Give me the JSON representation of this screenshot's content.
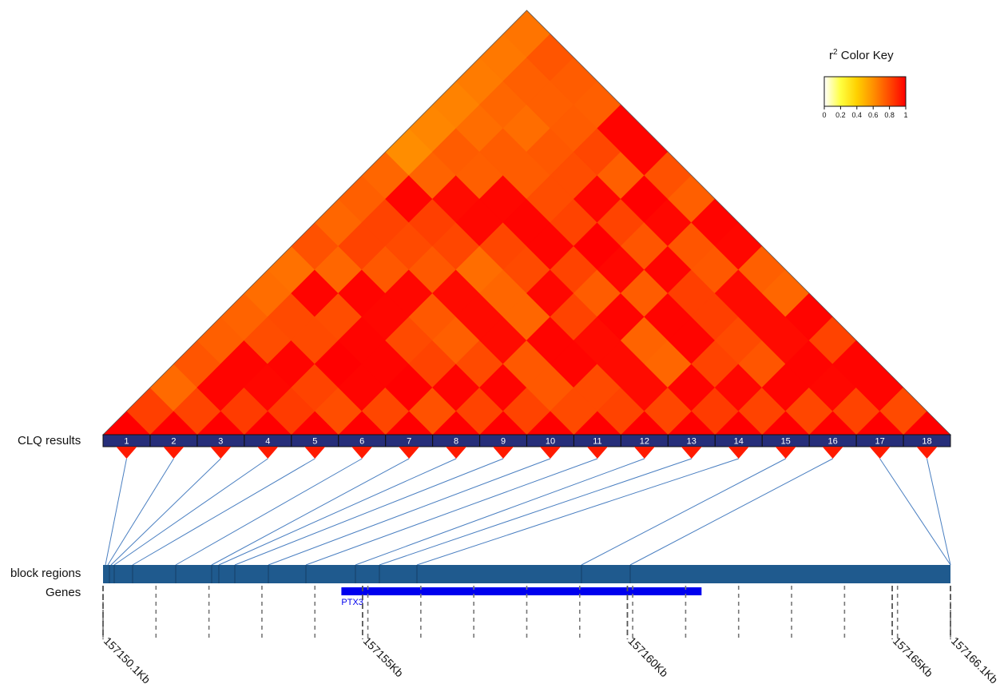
{
  "labels": {
    "clq_results": "CLQ results",
    "block_regions": "block regions",
    "genes": "Genes"
  },
  "color_key": {
    "title_main": "r",
    "title_sup": "2",
    "title_rest": " Color Key",
    "ticks": [
      "0",
      "0.2",
      "0.4",
      "0.6",
      "0.8",
      "1"
    ],
    "gradient": [
      "#ffffff",
      "#ffff40",
      "#ffd000",
      "#ff9000",
      "#ff4a00",
      "#ff0000"
    ]
  },
  "clq_blocks": [
    "1",
    "2",
    "3",
    "4",
    "5",
    "6",
    "7",
    "8",
    "9",
    "10",
    "11",
    "12",
    "13",
    "14",
    "15",
    "16",
    "17",
    "18"
  ],
  "gene": {
    "name": "PTX3",
    "color": "#0000ee"
  },
  "axis_labels": [
    "157150.1Kb",
    "157155Kb",
    "157160Kb",
    "157165Kb",
    "157166.1Kb"
  ],
  "colors": {
    "bar_fill": "#262e7a",
    "block_fill": "#1f5a8e",
    "connector": "#4a7fc1",
    "marker": "#ff1a00"
  },
  "chart_data": {
    "type": "heatmap",
    "title": "",
    "metric": "r2",
    "n": 18,
    "colorscale_range": [
      0,
      1
    ],
    "ld_matrix_upper": [
      [
        0.83,
        0.71,
        0.77,
        0.74,
        0.73,
        0.7,
        0.69,
        0.78,
        0.72,
        0.74,
        0.72,
        0.61,
        0.63,
        0.64,
        0.66,
        0.67,
        0.68
      ],
      [
        0.82,
        0.99,
        0.99,
        0.79,
        0.8,
        0.99,
        0.72,
        0.82,
        0.82,
        0.99,
        0.73,
        0.75,
        0.7,
        0.72,
        0.74,
        0.77
      ],
      [
        0.84,
        0.98,
        0.99,
        0.8,
        0.79,
        0.99,
        0.76,
        0.8,
        0.83,
        0.97,
        0.74,
        0.75,
        0.7,
        0.74,
        0.75
      ],
      [
        0.84,
        0.82,
        1.0,
        0.99,
        0.98,
        0.98,
        0.76,
        0.81,
        0.98,
        0.98,
        0.75,
        0.76,
        0.75,
        0.74
      ],
      [
        0.79,
        0.99,
        0.99,
        0.8,
        0.76,
        0.97,
        0.7,
        0.81,
        0.99,
        0.79,
        0.79,
        0.81,
        0.99
      ],
      [
        0.81,
        1.0,
        0.82,
        0.74,
        0.97,
        0.72,
        0.8,
        0.99,
        0.82,
        0.98,
        0.74,
        0.99
      ],
      [
        0.78,
        0.99,
        0.8,
        0.97,
        0.72,
        0.98,
        0.82,
        1.0,
        0.82,
        1.0,
        0.78
      ],
      [
        0.82,
        0.99,
        0.76,
        0.99,
        0.82,
        0.75,
        0.98,
        0.77,
        0.98,
        0.74
      ],
      [
        0.82,
        0.76,
        0.99,
        0.97,
        0.99,
        0.75,
        0.99,
        0.77,
        0.99
      ],
      [
        0.8,
        0.8,
        0.97,
        0.73,
        0.99,
        0.83,
        0.76,
        0.98
      ],
      [
        0.82,
        0.97,
        0.72,
        0.99,
        0.83,
        0.97,
        0.74
      ],
      [
        0.81,
        0.99,
        0.82,
        0.8,
        0.97,
        0.72
      ],
      [
        0.84,
        0.98,
        0.77,
        0.97,
        0.99
      ],
      [
        0.82,
        0.99,
        0.99,
        0.82
      ],
      [
        0.81,
        0.98,
        0.99
      ],
      [
        0.82,
        0.99
      ],
      [
        0.8
      ]
    ],
    "genome_axis_kb": {
      "start": 157150.1,
      "end": 157166.1,
      "ticks": [
        157150.1,
        157155,
        157160,
        157165,
        157166.1
      ]
    },
    "gene_span_kb": [
      157154.6,
      157161.4
    ]
  }
}
